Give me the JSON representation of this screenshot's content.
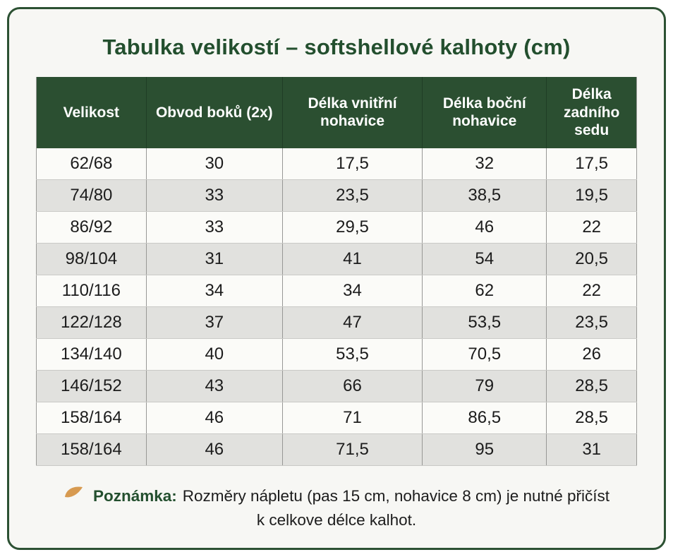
{
  "title": "Tabulka velikostí – softshellové kalhoty (cm)",
  "chart_data": {
    "type": "table",
    "title": "Tabulka velikostí – softshellové kalhoty (cm)",
    "units": "cm",
    "columns": [
      "Velikost",
      "Obvod boků (2x)",
      "Délka vnitřní nohavice",
      "Délka boční nohavice",
      "Délka zadního sedu"
    ],
    "rows": [
      [
        "62/68",
        "30",
        "17,5",
        "32",
        "17,5"
      ],
      [
        "74/80",
        "33",
        "23,5",
        "38,5",
        "19,5"
      ],
      [
        "86/92",
        "33",
        "29,5",
        "46",
        "22"
      ],
      [
        "98/104",
        "31",
        "41",
        "54",
        "20,5"
      ],
      [
        "110/116",
        "34",
        "34",
        "62",
        "22"
      ],
      [
        "122/128",
        "37",
        "47",
        "53,5",
        "23,5"
      ],
      [
        "134/140",
        "40",
        "53,5",
        "70,5",
        "26"
      ],
      [
        "146/152",
        "43",
        "66",
        "79",
        "28,5"
      ],
      [
        "158/164",
        "46",
        "71",
        "86,5",
        "28,5"
      ],
      [
        "158/164",
        "46",
        "71,5",
        "95",
        "31"
      ]
    ]
  },
  "note": {
    "icon": "leaf-icon",
    "label": "Poznámka:",
    "text": "Rozměry nápletu (pas 15 cm, nohavice 8 cm) je nutné přičíst k celkove délce kalhot."
  },
  "colors": {
    "border_green": "#2c5133",
    "header_bg": "#2b4f31",
    "header_text": "#ffffff",
    "title_green": "#234f2e",
    "row_bg": "#fbfbf8",
    "row_alt_bg": "#e1e1de",
    "note_icon": "#d79a50",
    "card_bg": "#f7f7f4"
  }
}
